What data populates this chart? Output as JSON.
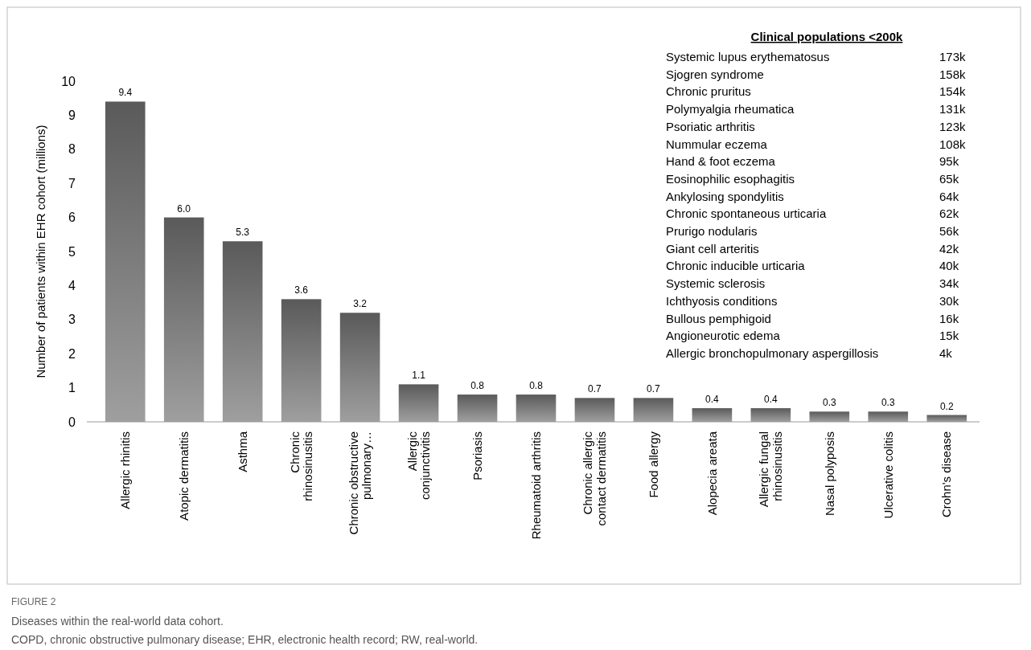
{
  "chart_data": {
    "type": "bar",
    "title": "FIGURE 2",
    "subtitle": "Diseases within the real-world data cohort.",
    "ylabel": "Number of patients within EHR cohort (millions)",
    "categories": [
      "Allergic rhinitis",
      "Atopic dermatitis",
      "Asthma",
      "Chronic rhinosinusitis",
      "Chronic obstructive pulmonary…",
      "Allergic conjunctivitis",
      "Psoriasis",
      "Rheumatoid arthritis",
      "Chronic allergic contact dermatitis",
      "Food allergy",
      "Alopecia areata",
      "Allergic fungal rhinosinusitis",
      "Nasal polyposis",
      "Ulcerative colitis",
      "Crohn's disease"
    ],
    "values": [
      9.4,
      6.0,
      5.3,
      3.6,
      3.2,
      1.1,
      0.8,
      0.8,
      0.7,
      0.7,
      0.4,
      0.4,
      0.3,
      0.3,
      0.2
    ],
    "value_labels": [
      "9.4",
      "6.0",
      "5.3",
      "3.6",
      "3.2",
      "1.1",
      "0.8",
      "0.8",
      "0.7",
      "0.7",
      "0.4",
      "0.4",
      "0.3",
      "0.3",
      "0.2"
    ],
    "color": "#5a5a5a",
    "ylim": [
      0,
      10
    ],
    "yticks": [
      0,
      1,
      2,
      3,
      4,
      5,
      6,
      7,
      8,
      9,
      10
    ],
    "grid": false,
    "annotations": [
      "Clinical populations <200k",
      "Systemic lupus erythematosus 173k",
      "Sjogren syndrome 158k",
      "Chronic pruritus 154k",
      "Polymyalgia rheumatica 131k",
      "Psoriatic arthritis 123k",
      "Nummular eczema 108k",
      "Hand & foot eczema 95k",
      "Eosinophilic esophagitis 65k",
      "Ankylosing spondylitis 64k",
      "Chronic spontaneous urticaria 62k",
      "Prurigo nodularis 56k",
      "Giant cell arteritis 42k",
      "Chronic inducible urticaria 40k",
      "Systemic sclerosis 34k",
      "Ichthyosis conditions 30k",
      "Bullous pemphigoid 16k",
      "Angioneurotic edema 15k",
      "Allergic bronchopulmonary aspergillosis 4k",
      "COPD, chronic obstructive pulmonary disease; EHR, electronic health record; RW, real-world."
    ]
  }
}
